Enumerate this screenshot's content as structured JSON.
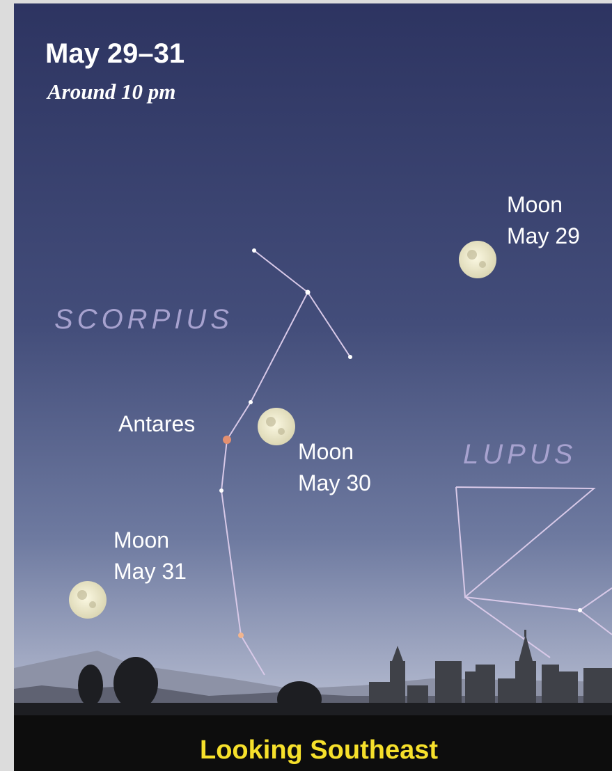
{
  "header": {
    "title": "May 29–31",
    "subtitle": "Around 10 pm"
  },
  "constellations": [
    "SCORPIUS",
    "LUPUS"
  ],
  "star": "Antares",
  "moons": [
    {
      "label": "Moon",
      "date": "May 29"
    },
    {
      "label": "Moon",
      "date": "May 30"
    },
    {
      "label": "Moon",
      "date": "May 31"
    }
  ],
  "footer": "Looking Southeast"
}
